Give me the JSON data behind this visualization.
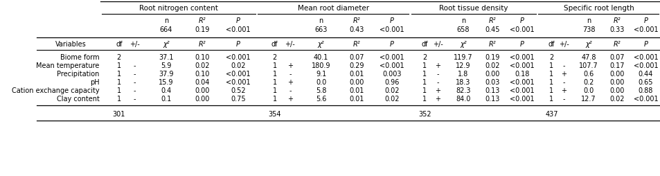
{
  "group_labels": [
    "Root nitrogen content",
    "Mean root diameter",
    "Root tissue density",
    "Specific root length"
  ],
  "model_row": [
    "664",
    "0.19",
    "<0.001",
    "663",
    "0.43",
    "<0.001",
    "658",
    "0.45",
    "<0.001",
    "738",
    "0.33",
    "<0.001"
  ],
  "data_rows": [
    {
      "label": "Biome form",
      "RNC": [
        "2",
        "",
        "37.1",
        "0.10",
        "<0.001"
      ],
      "MRD": [
        "2",
        "",
        "40.1",
        "0.07",
        "<0.001"
      ],
      "RTD": [
        "2",
        "",
        "119.7",
        "0.19",
        "<0.001"
      ],
      "SRL": [
        "2",
        "",
        "47.8",
        "0.07",
        "<0.001"
      ]
    },
    {
      "label": "Mean temperature",
      "RNC": [
        "1",
        "-",
        "5.9",
        "0.02",
        "0.02"
      ],
      "MRD": [
        "1",
        "+",
        "180.9",
        "0.29",
        "<0.001"
      ],
      "RTD": [
        "1",
        "+",
        "12.9",
        "0.02",
        "<0.001"
      ],
      "SRL": [
        "1",
        "-",
        "107.7",
        "0.17",
        "<0.001"
      ]
    },
    {
      "label": "Precipitation",
      "RNC": [
        "1",
        "-",
        "37.9",
        "0.10",
        "<0.001"
      ],
      "MRD": [
        "1",
        "-",
        "9.1",
        "0.01",
        "0.003"
      ],
      "RTD": [
        "1",
        "-",
        "1.8",
        "0.00",
        "0.18"
      ],
      "SRL": [
        "1",
        "+",
        "0.6",
        "0.00",
        "0.44"
      ]
    },
    {
      "label": "pH",
      "RNC": [
        "1",
        "-",
        "15.9",
        "0.04",
        "<0.001"
      ],
      "MRD": [
        "1",
        "+",
        "0.0",
        "0.00",
        "0.96"
      ],
      "RTD": [
        "1",
        "-",
        "18.3",
        "0.03",
        "<0.001"
      ],
      "SRL": [
        "1",
        "-",
        "0.2",
        "0.00",
        "0.65"
      ]
    },
    {
      "label": "Cation exchange capacity",
      "RNC": [
        "1",
        "-",
        "0.4",
        "0.00",
        "0.52"
      ],
      "MRD": [
        "1",
        "-",
        "5.8",
        "0.01",
        "0.02"
      ],
      "RTD": [
        "1",
        "+",
        "82.3",
        "0.13",
        "<0.001"
      ],
      "SRL": [
        "1",
        "+",
        "0.0",
        "0.00",
        "0.88"
      ]
    },
    {
      "label": "Clay content",
      "RNC": [
        "1",
        "-",
        "0.1",
        "0.00",
        "0.75"
      ],
      "MRD": [
        "1",
        "+",
        "5.6",
        "0.01",
        "0.02"
      ],
      "RTD": [
        "1",
        "+",
        "84.0",
        "0.13",
        "<0.001"
      ],
      "SRL": [
        "1",
        "-",
        "12.7",
        "0.02",
        "<0.001"
      ]
    }
  ],
  "n_row": [
    "301",
    "354",
    "352",
    "437"
  ],
  "bg_color": "#ffffff",
  "text_color": "#000000",
  "line_color": "#000000",
  "fontsize": 7.0,
  "fontsize_header": 7.5
}
